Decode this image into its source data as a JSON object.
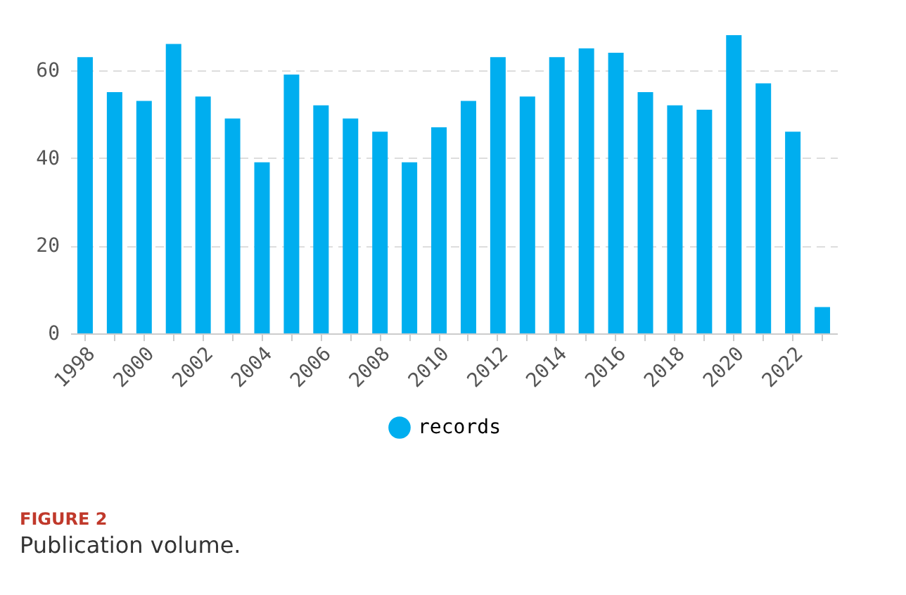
{
  "chart_data": {
    "type": "bar",
    "categories": [
      "1998",
      null,
      "2000",
      null,
      "2002",
      null,
      "2004",
      null,
      "2006",
      null,
      "2008",
      null,
      "2010",
      null,
      "2012",
      null,
      "2014",
      null,
      "2016",
      null,
      "2018",
      null,
      "2020",
      null,
      "2022",
      null
    ],
    "series": [
      {
        "name": "records",
        "color": "#00aeef",
        "values": [
          63,
          55,
          53,
          66,
          54,
          49,
          39,
          59,
          52,
          49,
          46,
          39,
          47,
          53,
          63,
          54,
          63,
          65,
          64,
          55,
          52,
          51,
          68,
          57,
          46,
          6
        ]
      }
    ],
    "ylim": [
      0,
      68
    ],
    "yticks": [
      0,
      20,
      40,
      60
    ],
    "grid": "y",
    "legend": "bottom",
    "annotations": [
      "FIGURE 2",
      "Publication volume."
    ]
  }
}
